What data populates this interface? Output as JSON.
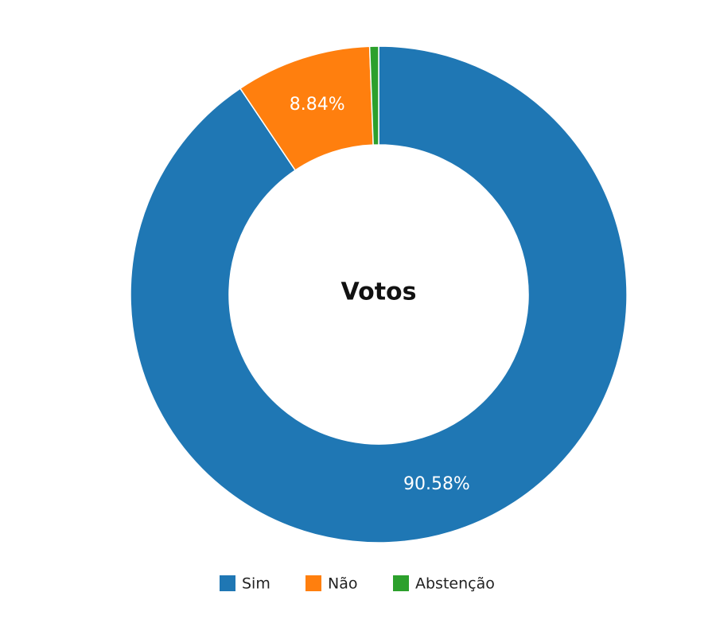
{
  "chart_data": {
    "type": "donut",
    "title": "Votos",
    "categories": [
      "Sim",
      "Não",
      "Abstenção"
    ],
    "values": [
      90.58,
      8.84,
      0.58
    ],
    "value_labels": [
      "90.58%",
      "8.84%",
      null
    ],
    "colors": [
      "#1f77b4",
      "#ff7f0e",
      "#2ca02c"
    ]
  }
}
